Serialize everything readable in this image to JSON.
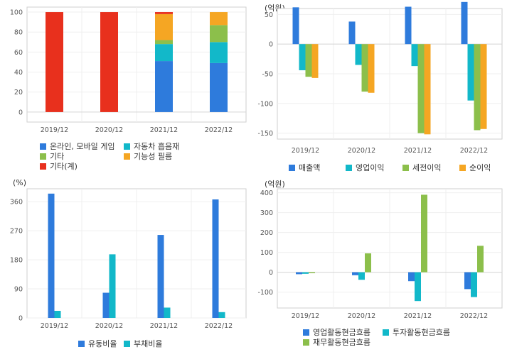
{
  "colors": {
    "blue": "#2E7BDC",
    "teal": "#12B8C9",
    "green": "#8CBF4B",
    "orange": "#F5A623",
    "red": "#E8301D"
  },
  "chart_data": [
    {
      "type": "bar",
      "stacked": true,
      "unit": "",
      "categories": [
        "2019/12",
        "2020/12",
        "2021/12",
        "2022/12"
      ],
      "ylim": [
        -10,
        105
      ],
      "yticks": [
        0,
        20,
        40,
        60,
        80,
        100
      ],
      "series": [
        {
          "name": "온라인, 모바일 게임",
          "color": "blue",
          "values": [
            0,
            0,
            51,
            49
          ]
        },
        {
          "name": "자동차 흡음재",
          "color": "teal",
          "values": [
            0,
            0,
            17,
            21
          ]
        },
        {
          "name": "기타",
          "color": "green",
          "values": [
            0,
            0,
            4,
            17
          ]
        },
        {
          "name": "기능성 필름",
          "color": "orange",
          "values": [
            0,
            0,
            26,
            13
          ]
        },
        {
          "name": "기타(계)",
          "color": "red",
          "values": [
            100,
            100,
            2,
            0
          ]
        }
      ],
      "legend_rows": [
        [
          "온라인, 모바일 게임",
          "자동차 흡음재"
        ],
        [
          "기타",
          "기능성 필름"
        ],
        [
          "기타(계)"
        ]
      ]
    },
    {
      "type": "bar",
      "unit": "(억원)",
      "categories": [
        "2019/12",
        "2020/12",
        "2021/12",
        "2022/12"
      ],
      "ylim": [
        -160,
        60
      ],
      "yticks": [
        50,
        0,
        -50,
        -100,
        -150
      ],
      "series": [
        {
          "name": "매출액",
          "color": "blue",
          "values": [
            62,
            38,
            63,
            71
          ]
        },
        {
          "name": "영업이익",
          "color": "teal",
          "values": [
            -44,
            -35,
            -37,
            -95
          ]
        },
        {
          "name": "세전이익",
          "color": "green",
          "values": [
            -55,
            -80,
            -150,
            -145
          ]
        },
        {
          "name": "순이익",
          "color": "orange",
          "values": [
            -57,
            -82,
            -152,
            -143
          ]
        }
      ],
      "legend_rows": [
        [
          "매출액",
          "영업이익",
          "세전이익",
          "순이익"
        ]
      ]
    },
    {
      "type": "bar",
      "unit": "(%)",
      "categories": [
        "2019/12",
        "2020/12",
        "2021/12",
        "2022/12"
      ],
      "ylim": [
        0,
        400
      ],
      "yticks": [
        0,
        90,
        180,
        270,
        360
      ],
      "series": [
        {
          "name": "유동비율",
          "color": "blue",
          "values": [
            385,
            78,
            257,
            367
          ]
        },
        {
          "name": "부채비율",
          "color": "teal",
          "values": [
            22,
            197,
            32,
            18
          ]
        }
      ],
      "legend_rows": [
        [
          "유동비율",
          "부채비율"
        ]
      ]
    },
    {
      "type": "bar",
      "unit": "(억원)",
      "categories": [
        "2019/12",
        "2020/12",
        "2021/12",
        "2022/12"
      ],
      "ylim": [
        -180,
        420
      ],
      "yticks": [
        400,
        300,
        200,
        100,
        0,
        -100
      ],
      "series": [
        {
          "name": "영업활동현금흐름",
          "color": "blue",
          "values": [
            -10,
            -15,
            -45,
            -85
          ]
        },
        {
          "name": "투자활동현금흐름",
          "color": "teal",
          "values": [
            -8,
            -38,
            -145,
            -125
          ]
        },
        {
          "name": "재무활동현금흐름",
          "color": "green",
          "values": [
            -5,
            95,
            390,
            133
          ]
        }
      ],
      "legend_rows": [
        [
          "영업활동현금흐름",
          "투자활동현금흐름"
        ],
        [
          "재무활동현금흐름"
        ]
      ]
    }
  ]
}
